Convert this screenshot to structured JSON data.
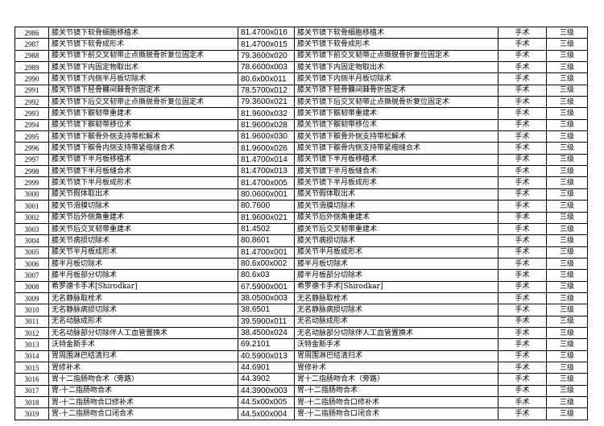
{
  "rows": [
    {
      "no": "2986",
      "name": "膝关节镜下软骨细胞移植术",
      "code": "81.4700x016",
      "name2": "膝关节镜下软骨细胞移植术",
      "type": "手术",
      "level": "三级"
    },
    {
      "no": "2987",
      "name": "膝关节镜下软骨成形术",
      "code": "81.4700x015",
      "name2": "膝关节镜下软骨成形术",
      "type": "手术",
      "level": "三级"
    },
    {
      "no": "2988",
      "name": "膝关节镜下前交叉韧带止点撕脱骨折复位固定术",
      "code": "79.3600x020",
      "name2": "膝关节镜下前交叉韧带止点撕脱骨折复位固定术",
      "type": "手术",
      "level": "三级"
    },
    {
      "no": "2989",
      "name": "膝关节镜下内固定物取出术",
      "code": "78.6600x003",
      "name2": "膝关节镜下内固定物取出术",
      "type": "手术",
      "level": "三级"
    },
    {
      "no": "2990",
      "name": "膝关节镜下内侧半月板切除术",
      "code": "80.6x00x011",
      "name2": "膝关节镜下内侧半月板切除术",
      "type": "手术",
      "level": "三级"
    },
    {
      "no": "2991",
      "name": "膝关节镜下胫骨髁间棘骨折固定术",
      "code": "78.5700x012",
      "name2": "膝关节镜下胫骨髁间棘骨折固定术",
      "type": "手术",
      "level": "三级"
    },
    {
      "no": "2992",
      "name": "膝关节镜下后交叉韧带止点撕脱骨折复位固定术",
      "code": "79.3600x021",
      "name2": "膝关节镜下后交叉韧带止点撕脱骨折复位固定术",
      "type": "手术",
      "level": "三级"
    },
    {
      "no": "2993",
      "name": "膝关节镜下髌韧带重建术",
      "code": "81.9600x032",
      "name2": "膝关节镜下髌韧带重建术",
      "type": "手术",
      "level": "三级"
    },
    {
      "no": "2994",
      "name": "膝关节镜下髌韧带移位术",
      "code": "81.9600x028",
      "name2": "膝关节镜下髌韧带移位术",
      "type": "手术",
      "level": "三级"
    },
    {
      "no": "2995",
      "name": "膝关节镜下髌骨外侧支持带松解术",
      "code": "81.9600x030",
      "name2": "膝关节镜下髌骨外侧支持带松解术",
      "type": "手术",
      "level": "三级"
    },
    {
      "no": "2996",
      "name": "膝关节镜下髌骨内侧支持带紧缩缝合术",
      "code": "81.9600x026",
      "name2": "膝关节镜下髌骨内侧支持带紧缩缝合术",
      "type": "手术",
      "level": "三级"
    },
    {
      "no": "2997",
      "name": "膝关节镜下半月板移植术",
      "code": "81.4700x014",
      "name2": "膝关节镜下半月板移植术",
      "type": "手术",
      "level": "三级"
    },
    {
      "no": "2998",
      "name": "膝关节镜下半月板缝合术",
      "code": "81.4700x013",
      "name2": "膝关节镜下半月板缝合术",
      "type": "手术",
      "level": "三级"
    },
    {
      "no": "2999",
      "name": "膝关节镜下半月板成形术",
      "code": "81.4700x005",
      "name2": "膝关节镜下半月板成形术",
      "type": "手术",
      "level": "三级"
    },
    {
      "no": "3000",
      "name": "膝关节假体取出术",
      "code": "80.0600x001",
      "name2": "膝关节假体取出术",
      "type": "手术",
      "level": "三级"
    },
    {
      "no": "3001",
      "name": "膝关节滑膜切除术",
      "code": "80.7600",
      "name2": "膝关节滑膜切除术",
      "type": "手术",
      "level": "三级"
    },
    {
      "no": "3002",
      "name": "膝关节后外侧角重建术",
      "code": "81.9600x021",
      "name2": "膝关节后外侧角重建术",
      "type": "手术",
      "level": "三级"
    },
    {
      "no": "3003",
      "name": "膝关节后交叉韧带重建术",
      "code": "81.4502",
      "name2": "膝关节后交叉韧带重建术",
      "type": "手术",
      "level": "三级"
    },
    {
      "no": "3004",
      "name": "膝关节病损切除术",
      "code": "80.8601",
      "name2": "膝关节病损切除术",
      "type": "手术",
      "level": "三级"
    },
    {
      "no": "3005",
      "name": "膝关节半月板成形术",
      "code": "81.4700x001",
      "name2": "膝关节半月板成形术",
      "type": "手术",
      "level": "三级"
    },
    {
      "no": "3006",
      "name": "膝半月板切除术",
      "code": "80.6x00x002",
      "name2": "膝半月板切除术",
      "type": "手术",
      "level": "三级"
    },
    {
      "no": "3007",
      "name": "膝半月板部分切除术",
      "code": "80.6x03",
      "name2": "膝半月板部分切除术",
      "type": "手术",
      "level": "三级"
    },
    {
      "no": "3008",
      "name": "希罗德卡手术[Shirodkar]",
      "code": "67.5900x001",
      "name2": "希罗德卡手术[Shirodkar]",
      "type": "手术",
      "level": "三级"
    },
    {
      "no": "3009",
      "name": "无名静脉取栓术",
      "code": "38.0500x003",
      "name2": "无名静脉取栓术",
      "type": "手术",
      "level": "三级"
    },
    {
      "no": "3010",
      "name": "无名静脉病损切除术",
      "code": "38.6501",
      "name2": "无名静脉病损切除术",
      "type": "手术",
      "level": "三级"
    },
    {
      "no": "3011",
      "name": "无名动脉成形术",
      "code": "39.5900x011",
      "name2": "无名动脉成形术",
      "type": "手术",
      "level": "三级"
    },
    {
      "no": "3012",
      "name": "无名动脉部分切除伴人工血管置换术",
      "code": "38.4500x024",
      "name2": "无名动脉部分切除伴人工血管置换术",
      "type": "手术",
      "level": "三级"
    },
    {
      "no": "3013",
      "name": "沃特金斯手术",
      "code": "69.2101",
      "name2": "沃特金斯手术",
      "type": "手术",
      "level": "三级"
    },
    {
      "no": "3014",
      "name": "胃周围淋巴结清扫术",
      "code": "40.5900x013",
      "name2": "胃周围淋巴结清扫术",
      "type": "手术",
      "level": "三级"
    },
    {
      "no": "3015",
      "name": "胃修补术",
      "code": "44.6901",
      "name2": "胃修补术",
      "type": "手术",
      "level": "三级"
    },
    {
      "no": "3016",
      "name": "胃十二指肠吻合术（旁路）",
      "code": "44.3902",
      "name2": "胃十二指肠吻合术（旁路）",
      "type": "手术",
      "level": "三级"
    },
    {
      "no": "3017",
      "name": "胃-十二指肠吻合术",
      "code": "44.3900x003",
      "name2": "胃-十二指肠吻合术",
      "type": "手术",
      "level": "三级"
    },
    {
      "no": "3018",
      "name": "胃-十二指肠吻合口修补术",
      "code": "44.5x00x005",
      "name2": "胃-十二指肠吻合口修补术",
      "type": "手术",
      "level": "三级"
    },
    {
      "no": "3019",
      "name": "胃-十二指肠吻合口闭合术",
      "code": "44.5x00x004",
      "name2": "胃-十二指肠吻合口闭合术",
      "type": "手术",
      "level": "三级"
    }
  ]
}
